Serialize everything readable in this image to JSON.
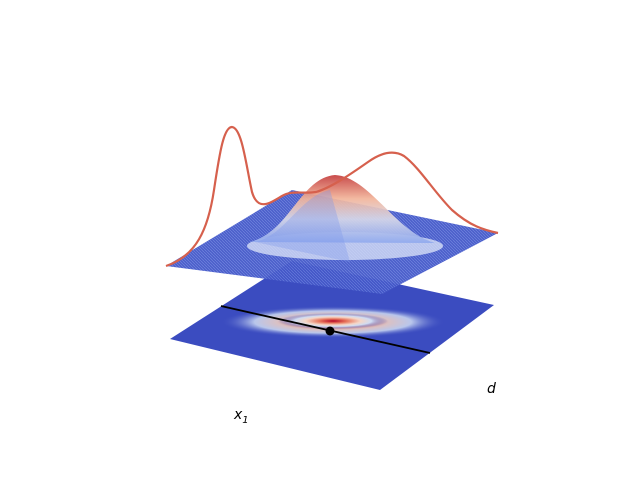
{
  "chart_data": {
    "type": "surface3d",
    "title": "",
    "axis_labels": {
      "x1": {
        "base": "x",
        "sub": "1"
      },
      "d": "d"
    },
    "colormap": "coolwarm",
    "colors": {
      "low": "#3b4cc0",
      "mid": "#dddcdc",
      "high": "#b40426",
      "profile_curve": "#d6604d",
      "line": "#000000",
      "point": "#000000"
    },
    "surface": {
      "x_range": [
        -3,
        3
      ],
      "y_range": [
        -3,
        3
      ],
      "peak_center": [
        0.3,
        0.0
      ],
      "peak_height": 1.0
    },
    "contour_floor": {
      "heatmap_center": [
        0.2,
        -0.4
      ],
      "line": {
        "from": [
          -3,
          1.3
        ],
        "to": [
          3,
          -2.0
        ]
      },
      "point": [
        0.2,
        -0.4
      ]
    },
    "profile_curve": {
      "description_points_x": [
        -3.0,
        -2.6,
        -2.2,
        -1.8,
        -1.4,
        -1.0,
        -0.6,
        -0.2,
        0.2,
        0.6,
        1.0,
        1.4,
        1.8,
        2.2,
        2.6,
        3.0
      ],
      "values": [
        0.02,
        0.35,
        1.0,
        0.35,
        0.12,
        0.15,
        0.1,
        0.12,
        0.3,
        0.55,
        0.62,
        0.55,
        0.35,
        0.15,
        0.06,
        0.02
      ]
    }
  }
}
